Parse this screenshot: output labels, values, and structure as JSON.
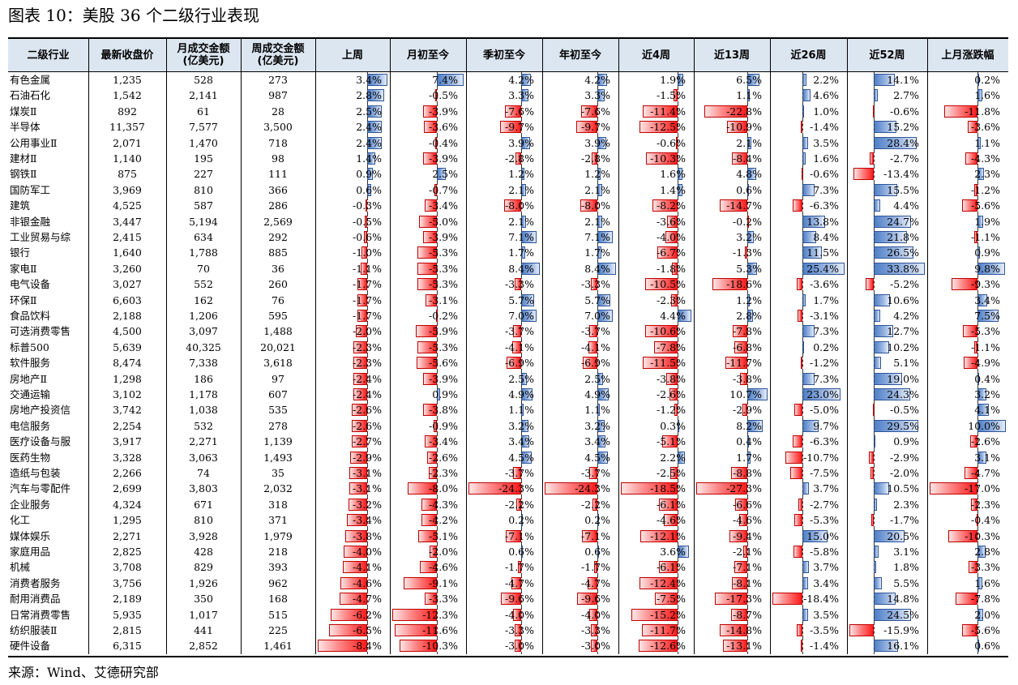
{
  "title": "图表 10：美股 36 个二级行业表现",
  "source": "来源：Wind、艾德研究部",
  "headers": {
    "industry": "二级行业",
    "close": "最新收盘价",
    "monthly_turnover": [
      "月成交金额",
      "(亿美元)"
    ],
    "weekly_turnover": [
      "周成交金额",
      "(亿美元)"
    ],
    "last_week": "上周",
    "mtd": "月初至今",
    "qtd": "季初至今",
    "ytd": "年初至今",
    "w4": "近4周",
    "w13": "近13周",
    "w26": "近26周",
    "w52": "近52周",
    "last_month": "上月涨跌幅"
  },
  "rows": [
    {
      "name": "有色金属",
      "close": "1,235",
      "mt": "528",
      "wt": "273",
      "v": [
        3.4,
        7.4,
        4.2,
        4.2,
        1.9,
        6.5,
        2.2,
        14.1,
        0.2
      ]
    },
    {
      "name": "石油石化",
      "close": "1,542",
      "mt": "2,141",
      "wt": "987",
      "v": [
        2.8,
        -0.5,
        3.3,
        3.3,
        -1.5,
        1.1,
        4.6,
        2.7,
        1.6
      ]
    },
    {
      "name": "煤炭Ⅱ",
      "close": "892",
      "mt": "61",
      "wt": "28",
      "v": [
        2.5,
        -3.9,
        -7.6,
        -7.6,
        -11.4,
        -22.8,
        1.0,
        -0.6,
        -11.8
      ]
    },
    {
      "name": "半导体",
      "close": "11,357",
      "mt": "7,577",
      "wt": "3,500",
      "v": [
        2.4,
        -3.6,
        -9.7,
        -9.7,
        -12.5,
        -10.9,
        -1.4,
        15.2,
        -3.6
      ]
    },
    {
      "name": "公用事业Ⅱ",
      "close": "2,071",
      "mt": "1,470",
      "wt": "718",
      "v": [
        2.4,
        -0.4,
        3.9,
        3.9,
        -0.6,
        2.1,
        3.5,
        28.4,
        1.1
      ]
    },
    {
      "name": "建材Ⅱ",
      "close": "1,140",
      "mt": "195",
      "wt": "98",
      "v": [
        1.4,
        -3.9,
        -2.8,
        -2.8,
        -10.3,
        -8.4,
        1.6,
        -2.7,
        -4.3
      ]
    },
    {
      "name": "钢铁Ⅱ",
      "close": "875",
      "mt": "227",
      "wt": "111",
      "v": [
        0.9,
        2.5,
        1.2,
        1.2,
        1.6,
        4.8,
        -0.6,
        -13.4,
        2.3
      ]
    },
    {
      "name": "国防军工",
      "close": "3,969",
      "mt": "810",
      "wt": "366",
      "v": [
        0.6,
        -0.7,
        2.1,
        2.1,
        1.4,
        0.6,
        7.3,
        15.5,
        -1.2
      ]
    },
    {
      "name": "建筑",
      "close": "4,525",
      "mt": "587",
      "wt": "286",
      "v": [
        -0.3,
        -3.4,
        -8.0,
        -8.0,
        -8.2,
        -14.7,
        -6.3,
        4.4,
        -5.6
      ]
    },
    {
      "name": "非银金融",
      "close": "3,447",
      "mt": "5,194",
      "wt": "2,569",
      "v": [
        -0.5,
        -5.0,
        2.1,
        2.1,
        -3.6,
        -0.2,
        13.8,
        24.7,
        1.9
      ]
    },
    {
      "name": "工业贸易与综",
      "close": "2,415",
      "mt": "634",
      "wt": "292",
      "v": [
        -0.6,
        -3.9,
        7.1,
        7.1,
        -4.0,
        3.2,
        8.4,
        21.8,
        -1.1
      ]
    },
    {
      "name": "银行",
      "close": "1,640",
      "mt": "1,788",
      "wt": "885",
      "v": [
        -1.0,
        -5.3,
        1.7,
        1.7,
        -6.7,
        -1.3,
        11.5,
        26.5,
        0.9
      ]
    },
    {
      "name": "家电Ⅱ",
      "close": "3,260",
      "mt": "70",
      "wt": "36",
      "v": [
        -1.1,
        -5.3,
        8.4,
        8.4,
        -1.8,
        5.3,
        25.4,
        33.8,
        9.8
      ]
    },
    {
      "name": "电气设备",
      "close": "3,027",
      "mt": "552",
      "wt": "260",
      "v": [
        -1.7,
        -5.3,
        -3.3,
        -3.3,
        -10.5,
        -18.6,
        -3.6,
        -5.2,
        -9.3
      ]
    },
    {
      "name": "环保Ⅱ",
      "close": "6,603",
      "mt": "162",
      "wt": "76",
      "v": [
        -1.7,
        -3.1,
        5.7,
        5.7,
        -2.3,
        1.2,
        1.7,
        10.6,
        3.4
      ]
    },
    {
      "name": "食品饮料",
      "close": "2,188",
      "mt": "1,206",
      "wt": "595",
      "v": [
        -1.7,
        -0.2,
        7.0,
        7.0,
        4.4,
        2.8,
        -3.1,
        4.2,
        7.5
      ]
    },
    {
      "name": "可选消费零售",
      "close": "4,500",
      "mt": "3,097",
      "wt": "1,488",
      "v": [
        -2.0,
        -5.9,
        -3.7,
        -3.7,
        -10.6,
        -7.8,
        7.3,
        12.7,
        -5.3
      ]
    },
    {
      "name": "标普500",
      "close": "5,639",
      "mt": "40,325",
      "wt": "20,021",
      "v": [
        -2.3,
        -5.3,
        -4.1,
        -4.1,
        -7.8,
        -6.8,
        0.2,
        10.2,
        -1.1
      ]
    },
    {
      "name": "软件服务",
      "close": "8,474",
      "mt": "7,338",
      "wt": "3,618",
      "v": [
        -2.3,
        -5.6,
        -6.9,
        -6.9,
        -11.5,
        -11.7,
        -1.2,
        5.1,
        -4.9
      ]
    },
    {
      "name": "房地产Ⅱ",
      "close": "1,298",
      "mt": "186",
      "wt": "97",
      "v": [
        -2.4,
        -3.9,
        2.5,
        2.5,
        -3.8,
        -3.8,
        7.3,
        19.0,
        0.4
      ]
    },
    {
      "name": "交通运输",
      "close": "3,102",
      "mt": "1,178",
      "wt": "607",
      "v": [
        -2.4,
        0.9,
        4.9,
        4.9,
        -2.6,
        10.7,
        23.0,
        24.3,
        3.2
      ]
    },
    {
      "name": "房地产投资信",
      "close": "3,742",
      "mt": "1,038",
      "wt": "535",
      "v": [
        -2.6,
        -3.8,
        1.1,
        1.1,
        -1.2,
        -2.9,
        -5.0,
        -0.5,
        4.1
      ]
    },
    {
      "name": "电信服务",
      "close": "2,254",
      "mt": "532",
      "wt": "278",
      "v": [
        -2.6,
        -0.9,
        3.2,
        3.2,
        0.3,
        8.2,
        9.7,
        29.5,
        10.0
      ]
    },
    {
      "name": "医疗设备与服",
      "close": "3,917",
      "mt": "2,271",
      "wt": "1,139",
      "v": [
        -2.7,
        -3.4,
        3.4,
        3.4,
        -5.1,
        0.4,
        -6.3,
        0.9,
        -2.6
      ]
    },
    {
      "name": "医药生物",
      "close": "3,328",
      "mt": "3,063",
      "wt": "1,493",
      "v": [
        -2.9,
        -2.6,
        4.5,
        4.5,
        2.2,
        1.7,
        -10.7,
        -2.9,
        3.1
      ]
    },
    {
      "name": "造纸与包装",
      "close": "2,266",
      "mt": "74",
      "wt": "35",
      "v": [
        -3.1,
        -2.3,
        -3.7,
        -3.7,
        -2.5,
        -8.8,
        -7.5,
        -2.0,
        -4.7
      ]
    },
    {
      "name": "汽车与零配件",
      "close": "2,699",
      "mt": "3,803",
      "wt": "2,032",
      "v": [
        -3.1,
        -8.0,
        -24.3,
        -24.3,
        -18.5,
        -27.3,
        3.7,
        10.5,
        -17.0
      ]
    },
    {
      "name": "企业服务",
      "close": "4,324",
      "mt": "671",
      "wt": "318",
      "v": [
        -3.2,
        -4.3,
        -2.2,
        -2.2,
        -6.1,
        -6.6,
        -2.7,
        2.3,
        -2.3
      ]
    },
    {
      "name": "化工",
      "close": "1,295",
      "mt": "810",
      "wt": "371",
      "v": [
        -3.4,
        -4.2,
        0.2,
        0.2,
        -4.6,
        -4.6,
        -5.3,
        -1.7,
        -0.4
      ]
    },
    {
      "name": "媒体娱乐",
      "close": "2,271",
      "mt": "3,928",
      "wt": "1,979",
      "v": [
        -3.8,
        -5.1,
        -7.1,
        -7.1,
        -12.1,
        -9.4,
        15.0,
        20.5,
        -10.3
      ]
    },
    {
      "name": "家庭用品",
      "close": "2,825",
      "mt": "428",
      "wt": "218",
      "v": [
        -4.0,
        -2.0,
        0.6,
        0.6,
        3.6,
        -2.1,
        -5.8,
        3.1,
        2.8
      ]
    },
    {
      "name": "机械",
      "close": "3,708",
      "mt": "829",
      "wt": "393",
      "v": [
        -4.1,
        -4.6,
        -1.7,
        -1.7,
        -6.1,
        -7.1,
        3.7,
        1.8,
        -3.3
      ]
    },
    {
      "name": "消费者服务",
      "close": "3,756",
      "mt": "1,926",
      "wt": "962",
      "v": [
        -4.6,
        -9.1,
        -4.7,
        -4.7,
        -12.4,
        -8.1,
        3.4,
        5.5,
        1.6
      ]
    },
    {
      "name": "耐用消费品",
      "close": "2,189",
      "mt": "350",
      "wt": "168",
      "v": [
        -4.7,
        -3.3,
        -9.6,
        -9.6,
        -7.5,
        -17.3,
        -18.4,
        14.8,
        -7.8
      ]
    },
    {
      "name": "日常消费零售",
      "close": "5,935",
      "mt": "1,017",
      "wt": "515",
      "v": [
        -6.2,
        -12.3,
        -4.0,
        -4.0,
        -15.2,
        -8.7,
        3.5,
        24.5,
        2.0
      ]
    },
    {
      "name": "纺织服装Ⅱ",
      "close": "2,815",
      "mt": "441",
      "wt": "225",
      "v": [
        -6.5,
        -11.6,
        -3.3,
        -3.3,
        -11.7,
        -14.8,
        -3.5,
        -15.9,
        -5.6
      ]
    },
    {
      "name": "硬件设备",
      "close": "6,315",
      "mt": "2,852",
      "wt": "1,461",
      "v": [
        -8.4,
        -10.3,
        -3.0,
        -3.0,
        -12.6,
        -13.1,
        -1.4,
        16.1,
        0.6
      ]
    }
  ]
}
